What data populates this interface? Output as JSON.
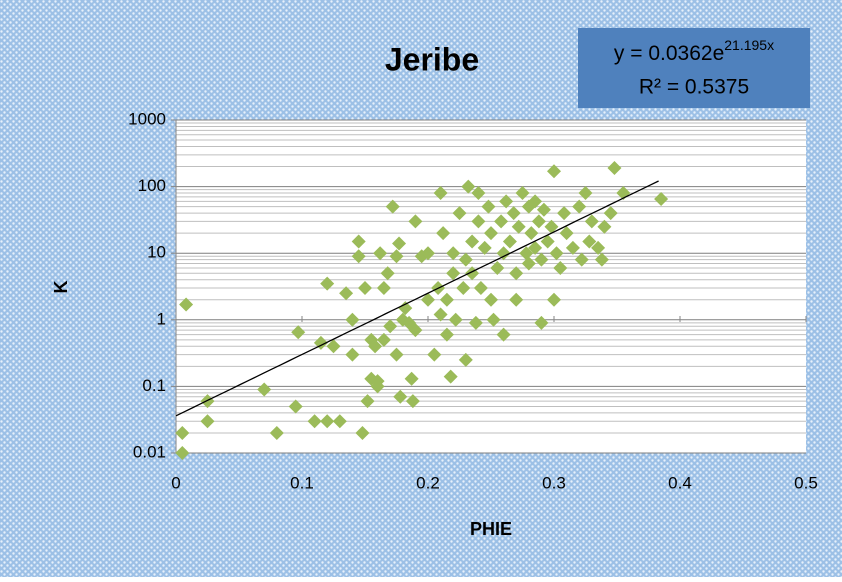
{
  "chart_data": {
    "type": "scatter",
    "title": "Jeribe",
    "xlabel": "PHIE",
    "ylabel": "K",
    "xlim": [
      0,
      0.5
    ],
    "xticks": [
      0,
      0.1,
      0.2,
      0.3,
      0.4,
      0.5
    ],
    "ylim": [
      0.01,
      1000
    ],
    "yticks": [
      0.01,
      0.1,
      1,
      10,
      100,
      1000
    ],
    "yscale": "log",
    "grid": true,
    "series": [
      {
        "color": "#9bbb59",
        "x": [
          0.005,
          0.005,
          0.008,
          0.025,
          0.025,
          0.07,
          0.08,
          0.095,
          0.097,
          0.11,
          0.115,
          0.12,
          0.12,
          0.125,
          0.13,
          0.135,
          0.14,
          0.14,
          0.145,
          0.145,
          0.148,
          0.15,
          0.152,
          0.155,
          0.155,
          0.158,
          0.16,
          0.16,
          0.162,
          0.165,
          0.165,
          0.168,
          0.17,
          0.172,
          0.175,
          0.175,
          0.177,
          0.178,
          0.18,
          0.182,
          0.185,
          0.187,
          0.188,
          0.19,
          0.19,
          0.195,
          0.2,
          0.2,
          0.205,
          0.208,
          0.21,
          0.21,
          0.212,
          0.215,
          0.215,
          0.218,
          0.22,
          0.22,
          0.222,
          0.225,
          0.228,
          0.23,
          0.23,
          0.232,
          0.235,
          0.235,
          0.238,
          0.24,
          0.24,
          0.242,
          0.245,
          0.248,
          0.25,
          0.25,
          0.252,
          0.255,
          0.258,
          0.26,
          0.26,
          0.262,
          0.265,
          0.268,
          0.27,
          0.27,
          0.272,
          0.275,
          0.278,
          0.28,
          0.28,
          0.282,
          0.285,
          0.285,
          0.288,
          0.29,
          0.29,
          0.292,
          0.295,
          0.298,
          0.3,
          0.3,
          0.302,
          0.305,
          0.308,
          0.31,
          0.315,
          0.32,
          0.322,
          0.325,
          0.328,
          0.33,
          0.335,
          0.338,
          0.34,
          0.345,
          0.348,
          0.355,
          0.385
        ],
        "values": [
          0.01,
          0.02,
          1.7,
          0.06,
          0.03,
          0.09,
          0.02,
          0.05,
          0.65,
          0.03,
          0.45,
          0.03,
          3.5,
          0.4,
          0.03,
          2.5,
          1,
          0.3,
          9,
          15,
          0.02,
          3,
          0.06,
          0.13,
          0.5,
          0.4,
          0.1,
          0.12,
          10,
          3,
          0.5,
          5,
          0.8,
          50,
          0.3,
          9,
          14,
          0.07,
          1,
          1.5,
          0.9,
          0.13,
          0.06,
          0.7,
          30,
          9,
          2,
          10,
          0.3,
          3,
          80,
          1.2,
          20,
          0.6,
          2,
          0.14,
          5,
          10,
          1,
          40,
          3,
          0.25,
          8,
          100,
          5,
          15,
          0.9,
          30,
          80,
          3,
          12,
          50,
          2,
          20,
          1,
          6,
          30,
          0.6,
          10,
          60,
          15,
          40,
          2,
          5,
          25,
          80,
          10,
          50,
          7,
          20,
          60,
          12,
          30,
          0.9,
          8,
          45,
          15,
          25,
          2,
          170,
          10,
          6,
          40,
          20,
          12,
          50,
          8,
          80,
          15,
          30,
          12,
          8,
          25,
          40,
          190,
          80,
          65
        ]
      }
    ],
    "trendline": {
      "color": "#000000",
      "a": 0.0362,
      "b": 21.195,
      "x_end": 0.383,
      "equation_base": "y = 0.0362e",
      "equation_exponent": "21.195x",
      "r_squared": "R² = 0.5375"
    }
  }
}
